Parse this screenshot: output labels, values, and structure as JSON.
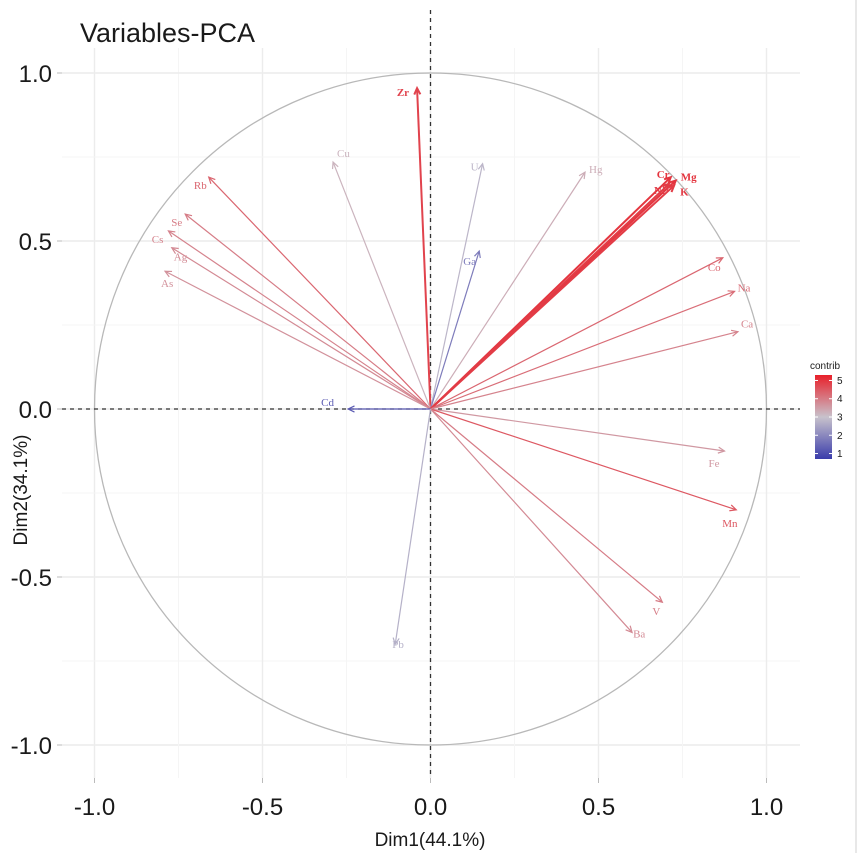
{
  "chart_data": {
    "type": "scatter",
    "subtype": "pca-variable-correlation-circle",
    "title": "Variables-PCA",
    "xlabel": "Dim1(44.1%)",
    "ylabel": "Dim2(34.1%)",
    "xlim": [
      -1.0,
      1.0
    ],
    "ylim": [
      -1.0,
      1.0
    ],
    "x_ticks": [
      "-1.0",
      "-0.5",
      "0.0",
      "0.5",
      "1.0"
    ],
    "x_tick_values": [
      -1.0,
      -0.5,
      0.0,
      0.5,
      1.0
    ],
    "y_ticks": [
      "1.0",
      "0.5",
      "0.0",
      "-0.5",
      "-1.0"
    ],
    "y_tick_values": [
      1.0,
      0.5,
      0.0,
      -0.5,
      -1.0
    ],
    "grid": true,
    "legend": {
      "title": "contrib",
      "position": "right",
      "ticks": [
        "5",
        "4",
        "3",
        "2",
        "1"
      ],
      "tick_values": [
        5,
        4,
        3,
        2,
        1
      ],
      "range": [
        0.7,
        5.3
      ],
      "colors": {
        "low": "#3a3cab",
        "mid": "#c8c2cc",
        "high": "#e8202a"
      }
    },
    "variables": [
      {
        "name": "Zr",
        "x": -0.04,
        "y": 0.955,
        "contrib": 4.8
      },
      {
        "name": "Cu",
        "x": -0.29,
        "y": 0.735,
        "contrib": 3.2
      },
      {
        "name": "Rb",
        "x": -0.66,
        "y": 0.69,
        "contrib": 4.3
      },
      {
        "name": "Se",
        "x": -0.73,
        "y": 0.58,
        "contrib": 4.0
      },
      {
        "name": "Cs",
        "x": -0.78,
        "y": 0.53,
        "contrib": 3.9
      },
      {
        "name": "Ag",
        "x": -0.77,
        "y": 0.48,
        "contrib": 3.8
      },
      {
        "name": "As",
        "x": -0.79,
        "y": 0.41,
        "contrib": 3.7
      },
      {
        "name": "U",
        "x": 0.155,
        "y": 0.73,
        "contrib": 2.8
      },
      {
        "name": "Ga",
        "x": 0.145,
        "y": 0.47,
        "contrib": 1.8
      },
      {
        "name": "Hg",
        "x": 0.46,
        "y": 0.705,
        "contrib": 3.3
      },
      {
        "name": "Cr",
        "x": 0.715,
        "y": 0.69,
        "contrib": 5.0
      },
      {
        "name": "Mg",
        "x": 0.73,
        "y": 0.68,
        "contrib": 5.0
      },
      {
        "name": "Ni",
        "x": 0.71,
        "y": 0.67,
        "contrib": 4.9
      },
      {
        "name": "K",
        "x": 0.725,
        "y": 0.665,
        "contrib": 4.9
      },
      {
        "name": "Co",
        "x": 0.87,
        "y": 0.45,
        "contrib": 4.3
      },
      {
        "name": "Na",
        "x": 0.905,
        "y": 0.35,
        "contrib": 4.2
      },
      {
        "name": "Ca",
        "x": 0.915,
        "y": 0.23,
        "contrib": 3.9
      },
      {
        "name": "Cd",
        "x": -0.245,
        "y": 0.0,
        "contrib": 1.2
      },
      {
        "name": "Fe",
        "x": 0.875,
        "y": -0.125,
        "contrib": 3.6
      },
      {
        "name": "Mn",
        "x": 0.91,
        "y": -0.3,
        "contrib": 4.5
      },
      {
        "name": "V",
        "x": 0.69,
        "y": -0.575,
        "contrib": 4.0
      },
      {
        "name": "Ba",
        "x": 0.6,
        "y": -0.665,
        "contrib": 3.8
      },
      {
        "name": "Pb",
        "x": -0.105,
        "y": -0.7,
        "contrib": 2.7
      }
    ]
  }
}
